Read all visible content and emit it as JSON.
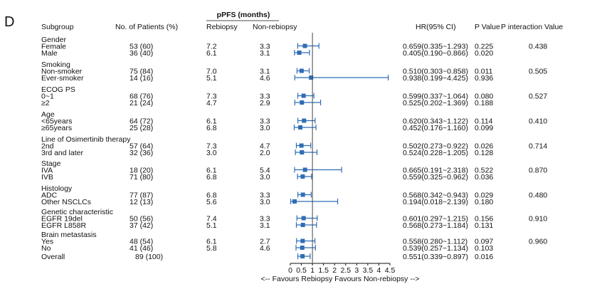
{
  "panel_label": "D",
  "headers": {
    "subgroup": "Subgroup",
    "patients": "No. of Patients (%)",
    "ppfs_group": "pPFS (months)",
    "rebiopsy": "Rebiopsy",
    "non_rebiopsy": "Non-rebiopsy",
    "hr_ci": "HR(95% CI)",
    "p_value": "P Value",
    "p_interaction": "P interaction Value"
  },
  "chart_data": {
    "type": "forest",
    "title": "",
    "xlabel": "<-- Favours Rebiopsy     Favours Non-rebiopsy -->",
    "xlim": [
      0,
      4.5
    ],
    "xticks": [
      "0",
      "0.5",
      "1",
      "1.5",
      "2",
      "2.5",
      "3",
      "3.5",
      "4",
      "4.5"
    ],
    "reference_line": 1.0,
    "marker_color": "#2f6db5",
    "groups": [
      {
        "title": "Gender",
        "p_interaction": "0.438",
        "rows": [
          {
            "label": "Female",
            "patients": "53 (60)",
            "rebiopsy": "7.2",
            "non_rebiopsy": "3.3",
            "hr_text": "0.659(0.335~1.293)",
            "p": "0.225",
            "hr": 0.659,
            "lo": 0.335,
            "hi": 1.293
          },
          {
            "label": "Male",
            "patients": "36 (40)",
            "rebiopsy": "6.1",
            "non_rebiopsy": "3.1",
            "hr_text": "0.405(0.190~0.866)",
            "p": "0.020",
            "hr": 0.405,
            "lo": 0.19,
            "hi": 0.866
          }
        ]
      },
      {
        "title": "Smoking",
        "p_interaction": "0.505",
        "rows": [
          {
            "label": "Non-smoker",
            "patients": "75 (84)",
            "rebiopsy": "7.0",
            "non_rebiopsy": "3.1",
            "hr_text": "0.510(0.303~0.858)",
            "p": "0.011",
            "hr": 0.51,
            "lo": 0.303,
            "hi": 0.858
          },
          {
            "label": "Ever-smoker",
            "patients": "14 (16)",
            "rebiopsy": "5.1",
            "non_rebiopsy": "4.6",
            "hr_text": "0.938(0.199~4.425)",
            "p": "0.936",
            "hr": 0.938,
            "lo": 0.199,
            "hi": 4.425
          }
        ]
      },
      {
        "title": "ECOG PS",
        "p_interaction": "0.527",
        "rows": [
          {
            "label": "0~1",
            "patients": "68 (76)",
            "rebiopsy": "7.3",
            "non_rebiopsy": "3.3",
            "hr_text": "0.599(0.337~1.064)",
            "p": "0.080",
            "hr": 0.599,
            "lo": 0.337,
            "hi": 1.064
          },
          {
            "label": "≥2",
            "patients": "21 (24)",
            "rebiopsy": "4.7",
            "non_rebiopsy": "2.9",
            "hr_text": "0.525(0.202~1.369)",
            "p": "0.188",
            "hr": 0.525,
            "lo": 0.202,
            "hi": 1.369
          }
        ]
      },
      {
        "title": "Age",
        "p_interaction": "0.410",
        "rows": [
          {
            "label": "<65years",
            "patients": "64 (72)",
            "rebiopsy": "6.1",
            "non_rebiopsy": "3.3",
            "hr_text": "0.620(0.343~1.122)",
            "p": "0.114",
            "hr": 0.62,
            "lo": 0.343,
            "hi": 1.122
          },
          {
            "label": "≥65years",
            "patients": "25 (28)",
            "rebiopsy": "6.8",
            "non_rebiopsy": "3.0",
            "hr_text": "0.452(0.176~1.160)",
            "p": "0.099",
            "hr": 0.452,
            "lo": 0.176,
            "hi": 1.16
          }
        ]
      },
      {
        "title": "Line of Osimertinib therapy",
        "p_interaction": "0.714",
        "rows": [
          {
            "label": "2nd",
            "patients": "57 (64)",
            "rebiopsy": "7.3",
            "non_rebiopsy": "4.7",
            "hr_text": "0.502(0.273~0.922)",
            "p": "0.026",
            "hr": 0.502,
            "lo": 0.273,
            "hi": 0.922
          },
          {
            "label": "3rd and later",
            "patients": "32 (36)",
            "rebiopsy": "3.0",
            "non_rebiopsy": "2.0",
            "hr_text": "0.524(0.228~1.205)",
            "p": "0.128",
            "hr": 0.524,
            "lo": 0.228,
            "hi": 1.205
          }
        ]
      },
      {
        "title": "Stage",
        "p_interaction": "0.870",
        "rows": [
          {
            "label": "IVA",
            "patients": "18 (20)",
            "rebiopsy": "6.1",
            "non_rebiopsy": "5.4",
            "hr_text": "0.665(0.191~2.318)",
            "p": "0.522",
            "hr": 0.665,
            "lo": 0.191,
            "hi": 2.318
          },
          {
            "label": "IVB",
            "patients": "71 (80)",
            "rebiopsy": "6.8",
            "non_rebiopsy": "3.0",
            "hr_text": "0.559(0.325~0.962)",
            "p": "0.036",
            "hr": 0.559,
            "lo": 0.325,
            "hi": 0.962
          }
        ]
      },
      {
        "title": "Histology",
        "p_interaction": "0.480",
        "rows": [
          {
            "label": "ADC",
            "patients": "77 (87)",
            "rebiopsy": "6.8",
            "non_rebiopsy": "3.3",
            "hr_text": "0.568(0.342~0.943)",
            "p": "0.029",
            "hr": 0.568,
            "lo": 0.342,
            "hi": 0.943
          },
          {
            "label": "Other NSCLCs",
            "patients": "12 (13)",
            "rebiopsy": "5.6",
            "non_rebiopsy": "3.0",
            "hr_text": "0.194(0.018~2.139)",
            "p": "0.180",
            "hr": 0.194,
            "lo": 0.018,
            "hi": 2.139
          }
        ]
      },
      {
        "title": "Genetic characteristic",
        "p_interaction": "0.910",
        "rows": [
          {
            "label": "EGFR 19del",
            "patients": "50 (56)",
            "rebiopsy": "7.4",
            "non_rebiopsy": "3.3",
            "hr_text": "0.601(0.297~1.215)",
            "p": "0.156",
            "hr": 0.601,
            "lo": 0.297,
            "hi": 1.215
          },
          {
            "label": "EGFR L858R",
            "patients": "37 (42)",
            "rebiopsy": "5.1",
            "non_rebiopsy": "3.1",
            "hr_text": "0.568(0.273~1.184)",
            "p": "0.131",
            "hr": 0.568,
            "lo": 0.273,
            "hi": 1.184
          }
        ]
      },
      {
        "title": "Brain metastasis",
        "p_interaction": "0.960",
        "rows": [
          {
            "label": "Yes",
            "patients": "48 (54)",
            "rebiopsy": "6.1",
            "non_rebiopsy": "2.7",
            "hr_text": "0.558(0.280~1.112)",
            "p": "0.097",
            "hr": 0.558,
            "lo": 0.28,
            "hi": 1.112
          },
          {
            "label": "No",
            "patients": "41 (46)",
            "rebiopsy": "5.8",
            "non_rebiopsy": "4.6",
            "hr_text": "0.539(0.257~1.134)",
            "p": "0.103",
            "hr": 0.539,
            "lo": 0.257,
            "hi": 1.134
          }
        ]
      }
    ],
    "overall": {
      "label": "Overall",
      "patients": "89 (100)",
      "rebiopsy": "",
      "non_rebiopsy": "",
      "hr_text": "0.551(0.339~0.897)",
      "p": "0.016",
      "hr": 0.551,
      "lo": 0.339,
      "hi": 0.897
    }
  }
}
